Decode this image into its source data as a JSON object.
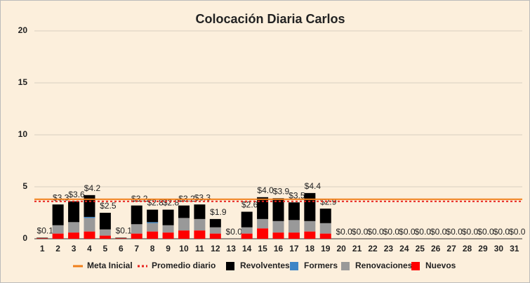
{
  "chart_data": {
    "type": "bar",
    "title": "Colocación Diaria Carlos",
    "categories": [
      "1",
      "2",
      "3",
      "4",
      "5",
      "6",
      "7",
      "8",
      "9",
      "10",
      "11",
      "12",
      "13",
      "14",
      "15",
      "16",
      "17",
      "18",
      "19",
      "20",
      "21",
      "22",
      "23",
      "24",
      "25",
      "26",
      "27",
      "28",
      "29",
      "30",
      "31"
    ],
    "stacked": true,
    "grid": true,
    "legend": "bottom",
    "ylim": [
      0,
      20
    ],
    "yticks": [
      0,
      5,
      10,
      15,
      20
    ],
    "series": [
      {
        "name": "Meta Inicial",
        "type": "line",
        "color": "#f07f1a",
        "dash": false,
        "values": [
          3.8,
          3.8,
          3.8,
          3.8,
          3.8,
          3.8,
          3.8,
          3.8,
          3.8,
          3.8,
          3.8,
          3.8,
          3.8,
          3.8,
          3.8,
          3.8,
          3.8,
          3.8,
          3.8,
          3.8,
          3.8,
          3.8,
          3.8,
          3.8,
          3.8,
          3.8,
          3.8,
          3.8,
          3.8,
          3.8,
          3.8
        ]
      },
      {
        "name": "Promedio diario",
        "type": "line",
        "color": "#e8211b",
        "dash": true,
        "values": [
          3.6,
          3.6,
          3.6,
          3.6,
          3.6,
          3.6,
          3.6,
          3.6,
          3.6,
          3.6,
          3.6,
          3.6,
          3.6,
          3.6,
          3.6,
          3.6,
          3.6,
          3.6,
          3.6,
          3.6,
          3.6,
          3.6,
          3.6,
          3.6,
          3.6,
          3.6,
          3.6,
          3.6,
          3.6,
          3.6,
          3.6
        ]
      },
      {
        "name": "Revolventes",
        "type": "bar",
        "color": "#000000",
        "values": [
          0.05,
          2.0,
          2.0,
          2.1,
          1.6,
          0.05,
          1.8,
          1.2,
          1.5,
          1.2,
          1.4,
          0.8,
          0,
          1.5,
          2.1,
          2.2,
          1.7,
          2.7,
          1.4,
          0,
          0,
          0,
          0,
          0,
          0,
          0,
          0,
          0,
          0,
          0,
          0
        ]
      },
      {
        "name": "Formers",
        "type": "bar",
        "color": "#3d85c6",
        "values": [
          0,
          0,
          0,
          0.1,
          0,
          0,
          0,
          0.1,
          0,
          0,
          0,
          0,
          0,
          0,
          0,
          0,
          0,
          0,
          0,
          0,
          0,
          0,
          0,
          0,
          0,
          0,
          0,
          0,
          0,
          0,
          0
        ]
      },
      {
        "name": "Renovaciones",
        "type": "bar",
        "color": "#999999",
        "values": [
          0,
          0.8,
          1.0,
          1.3,
          0.6,
          0,
          0.9,
          0.8,
          0.7,
          1.2,
          1.1,
          0.6,
          0,
          0.6,
          0.9,
          1.1,
          1.2,
          1.0,
          1.0,
          0,
          0,
          0,
          0,
          0,
          0,
          0,
          0,
          0,
          0,
          0,
          0
        ]
      },
      {
        "name": "Nuevos",
        "type": "bar",
        "color": "#ff0000",
        "values": [
          0.05,
          0.5,
          0.6,
          0.7,
          0.3,
          0.05,
          0.5,
          0.7,
          0.6,
          0.8,
          0.8,
          0.5,
          0,
          0.5,
          1.0,
          0.6,
          0.6,
          0.7,
          0.5,
          0,
          0,
          0,
          0,
          0,
          0,
          0,
          0,
          0,
          0,
          0,
          0
        ]
      }
    ],
    "totals": {
      "values": [
        0.1,
        3.3,
        3.6,
        4.2,
        2.5,
        0.1,
        3.2,
        2.8,
        2.8,
        3.2,
        3.3,
        1.9,
        0,
        2.6,
        4.0,
        3.9,
        3.5,
        4.4,
        2.9,
        0,
        0,
        0,
        0,
        0,
        0,
        0,
        0,
        0,
        0,
        0,
        0
      ],
      "value_labels": [
        "$0.1",
        "$3.3",
        "$3.6",
        "$4.2",
        "$2.5",
        "$0.1",
        "$3.2",
        "$2.8",
        "$2.8",
        "$3.2",
        "$3.3",
        "$1.9",
        "$0.0",
        "$2.6",
        "$4.0",
        "$3.9",
        "$3.5",
        "$4.4",
        "$2.9",
        "$0.0",
        "$0.0",
        "$0.0",
        "$0.0",
        "$0.0",
        "$0.0",
        "$0.0",
        "$0.0",
        "$0.0",
        "$0.0",
        "$0.0",
        "$0.0"
      ]
    }
  }
}
